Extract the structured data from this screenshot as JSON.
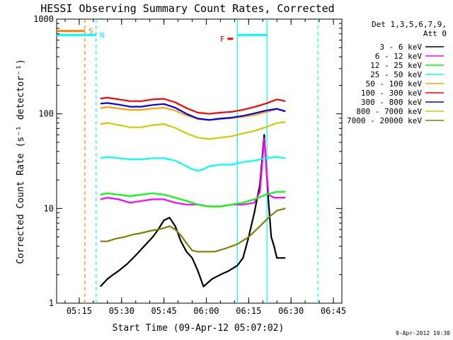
{
  "chart_data": {
    "type": "line",
    "title": "HESSI Observing Summary Count Rates, Corrected",
    "xlabel": "Start Time (09-Apr-12 05:07:02)",
    "ylabel": "Corrected Count Rate (s⁻¹ detector⁻¹)",
    "x_unit": "minutes after 05:07:02",
    "x_range": [
      0,
      101
    ],
    "y_scale": "log",
    "ylim": [
      1,
      1000
    ],
    "x_ticks": [
      {
        "label": "05:15",
        "t": 8
      },
      {
        "label": "05:30",
        "t": 23
      },
      {
        "label": "05:45",
        "t": 38
      },
      {
        "label": "06:00",
        "t": 53
      },
      {
        "label": "06:15",
        "t": 68
      },
      {
        "label": "06:30",
        "t": 83
      },
      {
        "label": "06:45",
        "t": 98
      }
    ],
    "y_ticks": [
      {
        "label": "1",
        "v": 1
      },
      {
        "label": "10",
        "v": 10
      },
      {
        "label": "100",
        "v": 100
      },
      {
        "label": "1000",
        "v": 1000
      }
    ],
    "legend_header": [
      "Det 1,3,5,6,7,9,",
      "Att 0"
    ],
    "legend_position": "right",
    "series": [
      {
        "name": "3 - 6 keV",
        "color": "#000000",
        "x": [
          15.5,
          18,
          20,
          22,
          25,
          28,
          31,
          34,
          36,
          38,
          40,
          42,
          44,
          46,
          48,
          50,
          52,
          55,
          58,
          61,
          64,
          66,
          68,
          70,
          72,
          73.5,
          75,
          76,
          77,
          78,
          80,
          81
        ],
        "y": [
          1.5,
          1.8,
          2,
          2.2,
          2.6,
          3.2,
          4,
          5,
          6,
          7.5,
          8,
          6.5,
          4.5,
          3.5,
          3,
          2.2,
          1.5,
          1.8,
          2,
          2.2,
          2.5,
          3,
          5,
          9,
          18,
          60,
          12,
          5,
          4,
          3,
          3,
          3
        ]
      },
      {
        "name": "6 - 12 keV",
        "color": "#ff00ff",
        "x": [
          15.5,
          18,
          22,
          26,
          30,
          34,
          38,
          42,
          46,
          50,
          54,
          58,
          62,
          66,
          70,
          72,
          73.5,
          75,
          77,
          79,
          81
        ],
        "y": [
          12.5,
          13,
          12.5,
          11.5,
          12,
          12.5,
          12.5,
          11.5,
          11,
          11,
          10.5,
          10.5,
          11,
          11,
          11.5,
          15,
          55,
          14,
          13,
          13,
          13
        ]
      },
      {
        "name": "12 - 25 keV",
        "color": "#00ff00",
        "x": [
          15.5,
          18,
          22,
          26,
          30,
          34,
          38,
          42,
          46,
          50,
          54,
          58,
          62,
          66,
          70,
          74,
          78,
          81
        ],
        "y": [
          14,
          14.5,
          14,
          13.5,
          14,
          14.5,
          14,
          13,
          12,
          11,
          10.5,
          10.5,
          11,
          11.5,
          12.5,
          14,
          15,
          15
        ]
      },
      {
        "name": "25 - 50 keV",
        "color": "#00ffff",
        "x": [
          15.5,
          18,
          22,
          26,
          30,
          34,
          38,
          42,
          46,
          48,
          50,
          52,
          54,
          58,
          62,
          66,
          70,
          74,
          78,
          81
        ],
        "y": [
          34,
          35,
          34,
          33,
          33,
          34,
          34,
          32,
          28,
          26,
          25,
          26,
          28,
          29,
          29,
          31,
          32,
          34,
          35,
          34
        ]
      },
      {
        "name": "50 - 100 keV",
        "color": "#ffa500",
        "x": [
          15.5,
          18,
          22,
          26,
          30,
          34,
          38,
          42,
          46,
          50,
          54,
          58,
          62,
          66,
          70,
          74,
          78,
          81
        ],
        "y": [
          115,
          118,
          114,
          110,
          110,
          114,
          116,
          108,
          96,
          88,
          86,
          88,
          90,
          93,
          97,
          104,
          112,
          108
        ]
      },
      {
        "name": "100 - 300 keV",
        "color": "#ff0000",
        "x": [
          15.5,
          18,
          22,
          26,
          30,
          34,
          38,
          42,
          46,
          50,
          54,
          58,
          62,
          66,
          70,
          74,
          78,
          81
        ],
        "y": [
          145,
          148,
          142,
          136,
          136,
          142,
          144,
          132,
          115,
          103,
          100,
          103,
          105,
          110,
          118,
          128,
          142,
          136
        ]
      },
      {
        "name": "300 - 800 keV",
        "color": "#0000ff",
        "x": [
          15.5,
          18,
          22,
          26,
          30,
          34,
          38,
          42,
          46,
          50,
          54,
          58,
          62,
          66,
          70,
          74,
          78,
          81
        ],
        "y": [
          128,
          130,
          125,
          119,
          119,
          124,
          127,
          116,
          100,
          89,
          86,
          89,
          91,
          95,
          101,
          108,
          113,
          106
        ]
      },
      {
        "name": "800 - 7000 keV",
        "color": "#cccc00",
        "x": [
          15.5,
          18,
          22,
          26,
          30,
          34,
          38,
          42,
          46,
          50,
          54,
          58,
          62,
          66,
          70,
          74,
          78,
          81
        ],
        "y": [
          78,
          80,
          76,
          72,
          72,
          76,
          78,
          71,
          62,
          56,
          54,
          56,
          58,
          62,
          66,
          72,
          80,
          82
        ]
      },
      {
        "name": "7000 - 20000 keV",
        "color": "#808000",
        "x": [
          15.5,
          18,
          21,
          24,
          27,
          30,
          33,
          36,
          38,
          40,
          42,
          44,
          46,
          48,
          50,
          53,
          56,
          60,
          64,
          68,
          72,
          75,
          78,
          81
        ],
        "y": [
          4.5,
          4.5,
          4.8,
          5,
          5.3,
          5.5,
          5.8,
          6,
          6.2,
          6.5,
          6,
          5.2,
          4.3,
          3.6,
          3.5,
          3.5,
          3.5,
          3.8,
          4.2,
          5,
          6.5,
          8,
          9.5,
          10
        ]
      }
    ],
    "markers": [
      {
        "label": "S",
        "color": "#ff8000",
        "level": 750,
        "t_start": 0,
        "t_end": 10
      },
      {
        "label": "N",
        "color": "#00ffff",
        "level": 680,
        "t_start": 0,
        "t_end": 14
      },
      {
        "label": "F",
        "color": "#ff0000",
        "level": 620,
        "t_start": 60.5,
        "t_end": 62.5
      },
      {
        "label": "",
        "color": "#00ffff",
        "level": 680,
        "t_start": 64,
        "t_end": 74.5
      }
    ],
    "vertical_lines": [
      {
        "t": 10,
        "color": "#ff8000",
        "style": "dashed"
      },
      {
        "t": 14,
        "color": "#00ffff",
        "style": "dashed"
      },
      {
        "t": 64,
        "color": "#00ffff",
        "style": "solid"
      },
      {
        "t": 74.5,
        "color": "#00ffff",
        "style": "solid"
      },
      {
        "t": 92.5,
        "color": "#00ffff",
        "style": "dashed"
      }
    ],
    "footer_date": "9-Apr-2012 10:30"
  }
}
